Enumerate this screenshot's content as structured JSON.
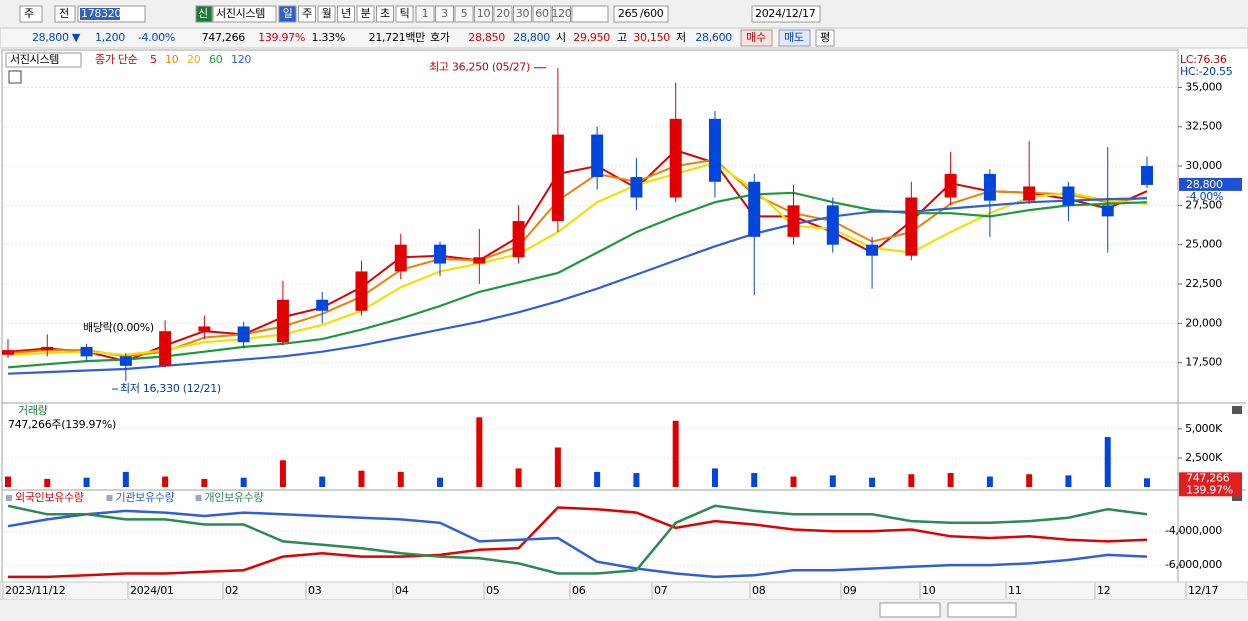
{
  "toolbar": {
    "market": "주",
    "prev": "전",
    "code": "178320",
    "credit": "신",
    "name": "서진시스템",
    "periods": [
      "일",
      "주",
      "월",
      "년",
      "분",
      "초",
      "틱"
    ],
    "intervals": [
      "1",
      "3",
      "5",
      "10",
      "20",
      "30",
      "60",
      "120"
    ],
    "count": "265",
    "max": "/600",
    "date": "2024/12/17"
  },
  "quote": {
    "price": "28,800 ▼",
    "change": "1,200",
    "rate": "-4.00%",
    "volume": "747,266",
    "volume_ratio": "139.97%",
    "turnover": "1.33%",
    "amount": "21,721백만",
    "bid_label": "호가",
    "ask": "28,850",
    "bid": "28,800",
    "open_label": "시",
    "open": "29,950",
    "high_label": "고",
    "high": "30,150",
    "low_label": "저",
    "low": "28,600",
    "buy": "매수",
    "sell": "매도",
    "avg": "평"
  },
  "time_axis": [
    "2023/11/12",
    "2024/01",
    "02",
    "03",
    "04",
    "05",
    "06",
    "07",
    "08",
    "09",
    "10",
    "11",
    "12",
    "12/17"
  ],
  "chart_data": [
    {
      "type": "candlestick",
      "title": "서진시스템",
      "subtitle": "종가 단순",
      "open": [
        18000,
        18300,
        18500,
        17900,
        17300,
        19500,
        19800,
        18800,
        21500,
        20800,
        23300,
        25000,
        23800,
        24200,
        26500,
        32000,
        29300,
        28000,
        33000,
        29000,
        25500,
        27500,
        25000,
        24300,
        28000,
        29500,
        27800,
        28700,
        27500,
        30000
      ],
      "high": [
        19000,
        19300,
        18700,
        18100,
        20200,
        20500,
        20100,
        22700,
        22000,
        24000,
        25700,
        25200,
        26000,
        27500,
        36250,
        32500,
        30500,
        35300,
        33500,
        29500,
        28800,
        28000,
        25500,
        29000,
        30900,
        29800,
        31600,
        29000,
        31200,
        30600
      ],
      "low": [
        17800,
        17900,
        17600,
        16330,
        17200,
        19000,
        18400,
        18600,
        20000,
        20500,
        22800,
        23000,
        22500,
        23800,
        25800,
        28500,
        27200,
        27700,
        28000,
        21800,
        25000,
        24500,
        22200,
        24000,
        27500,
        25500,
        27600,
        26500,
        24500,
        28600
      ],
      "close": [
        18300,
        18500,
        17900,
        17300,
        19500,
        19800,
        18800,
        21500,
        20800,
        23300,
        25000,
        23800,
        24200,
        26500,
        32000,
        29300,
        28000,
        33000,
        29000,
        25500,
        27500,
        25000,
        24300,
        28000,
        29500,
        27800,
        28700,
        27500,
        26800,
        28800
      ],
      "up_color": "#e00000",
      "down_color": "#0046dc",
      "series": [
        {
          "name": "5",
          "color": "#e00000",
          "values": [
            18200,
            18400,
            18200,
            17600,
            18600,
            19500,
            19300,
            20400,
            21000,
            22300,
            24200,
            24300,
            24000,
            25500,
            29500,
            30000,
            28600,
            31000,
            30200,
            26800,
            26800,
            25800,
            24500,
            26500,
            28900,
            28400,
            28300,
            27900,
            27300,
            28400
          ]
        },
        {
          "name": "10",
          "color": "#f08000",
          "values": [
            18100,
            18300,
            18300,
            17900,
            18200,
            19100,
            19300,
            19800,
            20600,
            21700,
            23400,
            24100,
            24000,
            24900,
            27800,
            29500,
            29000,
            30000,
            30400,
            28200,
            27000,
            26500,
            25200,
            25800,
            27600,
            28400,
            28300,
            28200,
            27700,
            28000
          ]
        },
        {
          "name": "20",
          "color": "#f2e000",
          "values": [
            18000,
            18100,
            18200,
            18000,
            18300,
            18800,
            19000,
            19300,
            19900,
            20800,
            22300,
            23300,
            23800,
            24400,
            25800,
            27700,
            28800,
            29500,
            30200,
            28500,
            26200,
            26000,
            24800,
            24500,
            25800,
            27000,
            28000,
            28300,
            27800,
            27600
          ]
        },
        {
          "name": "60",
          "color": "#1a9a3a",
          "values": [
            17200,
            17400,
            17600,
            17700,
            17900,
            18200,
            18500,
            18700,
            19000,
            19600,
            20300,
            21100,
            22000,
            22600,
            23200,
            24500,
            25800,
            26800,
            27700,
            28200,
            28300,
            27700,
            27200,
            27000,
            27000,
            26800,
            27200,
            27500,
            27600,
            27700
          ]
        },
        {
          "name": "120",
          "color": "#2f5fd8",
          "values": [
            16800,
            16900,
            17000,
            17100,
            17300,
            17500,
            17700,
            17900,
            18200,
            18600,
            19100,
            19600,
            20100,
            20700,
            21400,
            22200,
            23100,
            24000,
            24900,
            25700,
            26300,
            26800,
            27100,
            27100,
            27300,
            27500,
            27700,
            27800,
            27900,
            27950
          ]
        }
      ],
      "ylim": [
        15000,
        37250
      ],
      "yticks": [
        {
          "value": 17500,
          "label": "17,500"
        },
        {
          "value": 20000,
          "label": "20,000"
        },
        {
          "value": 22500,
          "label": "22,500"
        },
        {
          "value": 25000,
          "label": "25,000"
        },
        {
          "value": 27500,
          "label": "27,500"
        },
        {
          "value": 30000,
          "label": "30,000"
        },
        {
          "value": 32500,
          "label": "32,500"
        },
        {
          "value": 35000,
          "label": "35,000"
        }
      ],
      "high_note": {
        "value": 36250,
        "label": "최고 36,250 (05/27)"
      },
      "low_note": {
        "value": 16330,
        "label": "최저 16,330 (12/21)"
      },
      "dividend_note": "배당락(0.00%)",
      "side_labels": [
        "LC:76.36",
        "HC:-20.55"
      ],
      "last_price": {
        "value": 28800,
        "label": "28,800"
      },
      "last_change": "-4.00%"
    },
    {
      "type": "bar",
      "title": "거래량",
      "subtitle": "747,266주(139.97%)",
      "values": [
        900000,
        700000,
        800000,
        1300000,
        900000,
        700000,
        800000,
        2300000,
        900000,
        1400000,
        1300000,
        800000,
        6000000,
        1600000,
        3400000,
        1300000,
        1200000,
        5700000,
        1600000,
        1200000,
        900000,
        1000000,
        800000,
        1100000,
        1200000,
        900000,
        1100000,
        1000000,
        4300000,
        747266
      ],
      "ylim": [
        0,
        6800000
      ],
      "yticks": [
        {
          "value": 2500000,
          "label": "2,500K"
        },
        {
          "value": 5000000,
          "label": "5,000K"
        }
      ],
      "last_value": {
        "value": 747266,
        "label": "747,266"
      },
      "last_ratio": "139.97%"
    },
    {
      "type": "line",
      "series": [
        {
          "name": "외국인보유수량",
          "color": "#e00000",
          "values": [
            -6700000,
            -6700000,
            -6600000,
            -6500000,
            -6500000,
            -6400000,
            -6300000,
            -5500000,
            -5300000,
            -5500000,
            -5500000,
            -5400000,
            -5100000,
            -5000000,
            -2600000,
            -2700000,
            -2900000,
            -3800000,
            -3400000,
            -3600000,
            -3900000,
            -4000000,
            -4000000,
            -3900000,
            -4300000,
            -4400000,
            -4300000,
            -4500000,
            -4600000,
            -4500000
          ]
        },
        {
          "name": "기관보유수량",
          "color": "#2f5fd8",
          "values": [
            -3700000,
            -3300000,
            -3000000,
            -2800000,
            -2900000,
            -3100000,
            -2900000,
            -3000000,
            -3100000,
            -3200000,
            -3300000,
            -3500000,
            -4600000,
            -4500000,
            -4400000,
            -5800000,
            -6200000,
            -6500000,
            -6700000,
            -6600000,
            -6300000,
            -6300000,
            -6200000,
            -6100000,
            -6000000,
            -6000000,
            -5900000,
            -5700000,
            -5400000,
            -5500000
          ]
        },
        {
          "name": "개인보유수량",
          "color": "#2a8a50",
          "values": [
            -2500000,
            -3000000,
            -3000000,
            -3300000,
            -3300000,
            -3600000,
            -3600000,
            -4600000,
            -4800000,
            -5000000,
            -5300000,
            -5500000,
            -5600000,
            -5900000,
            -6500000,
            -6500000,
            -6300000,
            -3500000,
            -2500000,
            -2800000,
            -3000000,
            -3000000,
            -3000000,
            -3400000,
            -3500000,
            -3500000,
            -3400000,
            -3200000,
            -2700000,
            -3000000
          ]
        }
      ],
      "ylim": [
        -7000000,
        -1800000
      ],
      "yticks": [
        {
          "value": -6000000,
          "label": "-6,000,000"
        },
        {
          "value": -4000000,
          "label": "-4,000,000"
        }
      ]
    }
  ]
}
